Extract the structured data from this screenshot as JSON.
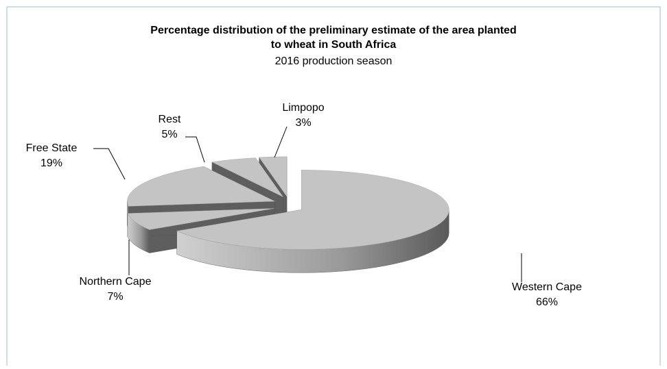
{
  "chart_data": {
    "type": "pie",
    "title": "Percentage distribution of the preliminary estimate of the area planted to wheat in South Africa",
    "subtitle": "2016 production season",
    "categories": [
      "Western Cape",
      "Northern Cape",
      "Free State",
      "Rest",
      "Limpopo"
    ],
    "values": [
      66,
      7,
      19,
      5,
      3
    ],
    "value_labels": [
      "66%",
      "7%",
      "19%",
      "5%",
      "3%"
    ],
    "color": "#c4c4c4"
  }
}
